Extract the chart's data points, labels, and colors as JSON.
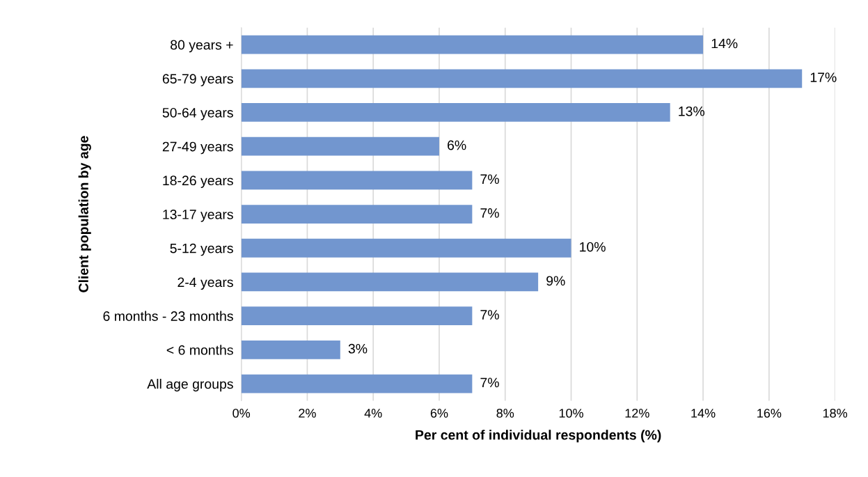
{
  "chart_data": {
    "type": "bar",
    "orientation": "horizontal",
    "categories": [
      "80 years +",
      "65-79 years",
      "50-64 years",
      "27-49 years",
      "18-26 years",
      "13-17 years",
      "5-12 years",
      "2-4 years",
      "6 months - 23 months",
      "< 6 months",
      "All age groups"
    ],
    "values": [
      14,
      17,
      13,
      6,
      7,
      7,
      10,
      9,
      7,
      3,
      7
    ],
    "value_labels": [
      "14%",
      "17%",
      "13%",
      "6%",
      "7%",
      "7%",
      "10%",
      "9%",
      "7%",
      "3%",
      "7%"
    ],
    "color": "#7296cf",
    "xlabel": "Per cent of individual respondents (%)",
    "ylabel": "Client population by age",
    "xlim": [
      0,
      18
    ],
    "xticks": [
      {
        "value": 0,
        "label": "0%"
      },
      {
        "value": 2,
        "label": "2%"
      },
      {
        "value": 4,
        "label": "4%"
      },
      {
        "value": 6,
        "label": "6%"
      },
      {
        "value": 8,
        "label": "8%"
      },
      {
        "value": 10,
        "label": "10%"
      },
      {
        "value": 12,
        "label": "12%"
      },
      {
        "value": 14,
        "label": "14%"
      },
      {
        "value": 16,
        "label": "16%"
      },
      {
        "value": 18,
        "label": "18%"
      }
    ],
    "grid": "x"
  }
}
